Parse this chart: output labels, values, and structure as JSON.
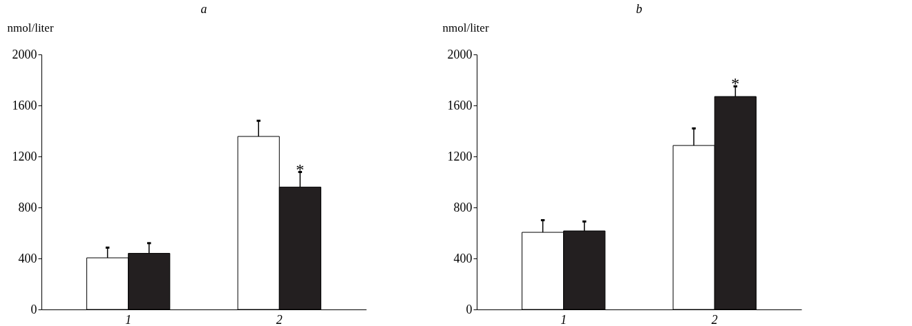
{
  "chart_data": [
    {
      "type": "bar",
      "title": "a",
      "ylabel": "nmol/liter",
      "categories": [
        "1",
        "2"
      ],
      "ylim": [
        0,
        2000
      ],
      "yticks": [
        0,
        400,
        800,
        1200,
        1600,
        2000
      ],
      "grid": false,
      "series": [
        {
          "color": "#ffffff",
          "values": [
            405,
            1357
          ],
          "errors": [
            [
              405,
              485
            ],
            [
              1357,
              1480
            ]
          ]
        },
        {
          "color": "#231f20",
          "values": [
            440,
            960
          ],
          "errors": [
            [
              440,
              520
            ],
            [
              960,
              1078
            ]
          ]
        }
      ],
      "annotations": [
        {
          "text": "*",
          "x": "2",
          "y": 1078
        }
      ]
    },
    {
      "type": "bar",
      "title": "b",
      "ylabel": "nmol/liter",
      "categories": [
        "1",
        "2"
      ],
      "ylim": [
        0,
        2000
      ],
      "yticks": [
        0,
        400,
        800,
        1200,
        1600,
        2000
      ],
      "grid": false,
      "series": [
        {
          "color": "#ffffff",
          "values": [
            605,
            1286
          ],
          "errors": [
            [
              605,
              700
            ],
            [
              1286,
              1420
            ]
          ]
        },
        {
          "color": "#231f20",
          "values": [
            616,
            1670
          ],
          "errors": [
            [
              616,
              690
            ],
            [
              1670,
              1750
            ]
          ]
        }
      ],
      "annotations": [
        "*"
      ]
    }
  ]
}
